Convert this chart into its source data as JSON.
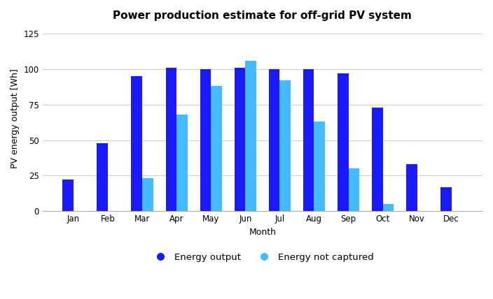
{
  "title": "Power production estimate for off-grid PV system",
  "xlabel": "Month",
  "ylabel": "PV energy output [Wh]",
  "months": [
    "Jan",
    "Feb",
    "Mar",
    "Apr",
    "May",
    "Jun",
    "Jul",
    "Aug",
    "Sep",
    "Oct",
    "Nov",
    "Dec"
  ],
  "energy_output": [
    22,
    48,
    95,
    101,
    100,
    101,
    100,
    100,
    97,
    73,
    33,
    17
  ],
  "energy_not_captured": [
    0,
    0,
    23,
    68,
    88,
    106,
    92,
    63,
    30,
    5,
    0,
    0
  ],
  "color_output": "#1a1aff",
  "color_not_captured": "#44bbff",
  "ylim": [
    0,
    130
  ],
  "yticks": [
    0,
    25,
    50,
    75,
    100,
    125
  ],
  "bar_width": 0.32,
  "legend_labels": [
    "Energy output",
    "Energy not captured"
  ],
  "background_color": "#ffffff",
  "grid_color": "#cccccc",
  "title_fontsize": 11,
  "axis_fontsize": 9,
  "tick_fontsize": 8.5
}
